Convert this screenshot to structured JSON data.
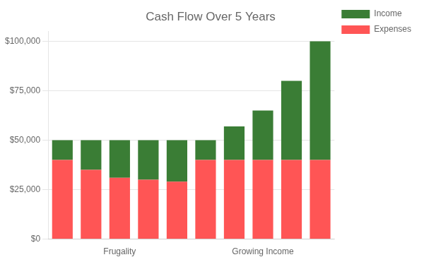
{
  "chart_data": {
    "type": "bar",
    "title": "Cash Flow Over 5 Years",
    "categories": [
      null,
      null,
      "Frugality",
      null,
      null,
      null,
      null,
      "Growing Income",
      null,
      null
    ],
    "series": [
      {
        "name": "Expenses",
        "color": "#ff5555",
        "values": [
          40000,
          35000,
          31000,
          30000,
          29000,
          40000,
          40000,
          40000,
          40000,
          40000
        ]
      },
      {
        "name": "Income",
        "color": "#3a7d35",
        "values": [
          10000,
          15000,
          19000,
          20000,
          21000,
          10000,
          17000,
          25000,
          40000,
          60000
        ]
      }
    ],
    "stacked": true,
    "ylim": [
      0,
      105000
    ],
    "yticks": [
      {
        "value": 0,
        "label": "$0"
      },
      {
        "value": 25000,
        "label": "$25,000"
      },
      {
        "value": 50000,
        "label": "$50,000"
      },
      {
        "value": 75000,
        "label": "$75,000"
      },
      {
        "value": 100000,
        "label": "$100,000"
      }
    ],
    "grid": true,
    "legend": "right"
  }
}
